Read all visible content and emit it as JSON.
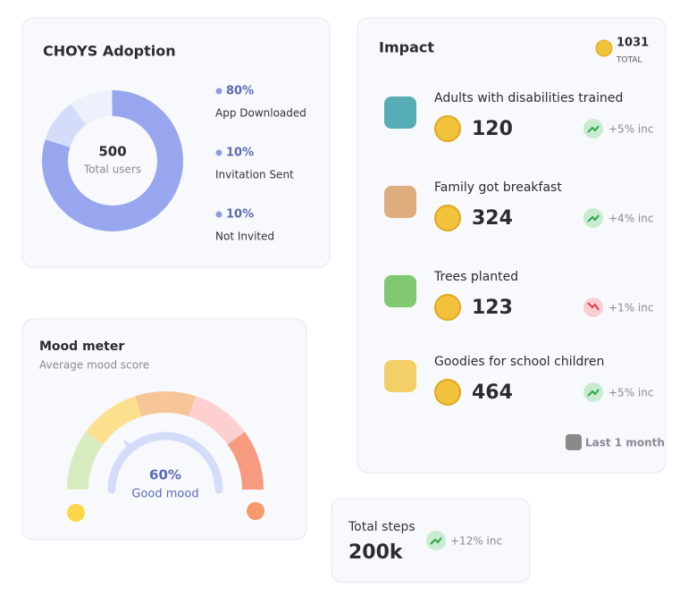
{
  "adoption": {
    "title": "CHOYS Adoption",
    "total": "500",
    "total_label": "Total users",
    "items": [
      {
        "value": 80,
        "label": "80%",
        "name": "App Downloaded"
      },
      {
        "value": 10,
        "label": "10%",
        "name": "Invitation Sent"
      },
      {
        "value": 10,
        "label": "10%",
        "name": "Not Invited"
      }
    ]
  },
  "mood": {
    "title": "Mood meter",
    "subtitle": "Average mood score",
    "score": "60%",
    "score_label": "Good mood"
  },
  "impact": {
    "title": "Impact",
    "total": "1031",
    "total_label": "TOTAL",
    "items": [
      {
        "name": "Adults with disabilities trained",
        "value": "120",
        "change": "+5% inc"
      },
      {
        "name": "Family got breakfast",
        "value": "324",
        "change": "+4% inc"
      },
      {
        "name": "Trees planted",
        "value": "123",
        "change": "+1% inc"
      },
      {
        "name": "Goodies for school children",
        "value": "464",
        "change": "+5% inc"
      }
    ],
    "period": "Last 1 month"
  },
  "steps": {
    "title": "Total steps",
    "value": "200k",
    "change": "+12% inc"
  }
}
